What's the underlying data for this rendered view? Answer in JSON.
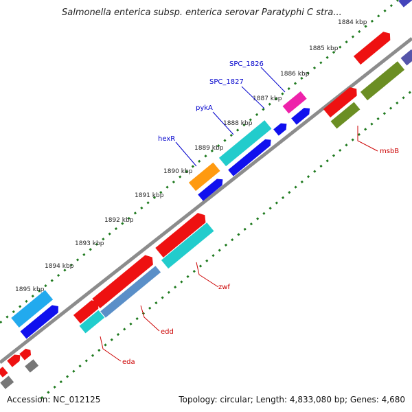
{
  "title": "Salmonella enterica subsp. enterica serovar Paratyphi C stra...",
  "footer": {
    "accession": "Accession: NC_012125",
    "summary": "Topology: circular; Length: 4,833,080 bp; Genes: 4,680"
  },
  "ticks": [
    "1884 kbp",
    "1885 kbp",
    "1886 kbp",
    "1887 kbp",
    "1888 kbp",
    "1889 kbp",
    "1890 kbp",
    "1891 kbp",
    "1892 kbp",
    "1893 kbp",
    "1894 kbp",
    "1895 kbp"
  ],
  "gene_labels": {
    "forward": [
      "SPC_1826",
      "SPC_1827",
      "pykA",
      "hexR"
    ],
    "reverse": [
      "msbB",
      "zwf",
      "edd",
      "eda"
    ]
  },
  "colors": {
    "backbone": "#8c8c8c",
    "tick_dots": "#1f7a1f",
    "label_forward": "#0000cc",
    "label_reverse": "#cc0000",
    "red": "#ee1111",
    "blue": "#1010ee",
    "cyan": "#22cccc",
    "sky": "#22aaee",
    "orange": "#ff9a10",
    "magenta": "#ee22aa",
    "olive": "#6b8e23",
    "gray": "#777777",
    "purple": "#5555aa"
  }
}
